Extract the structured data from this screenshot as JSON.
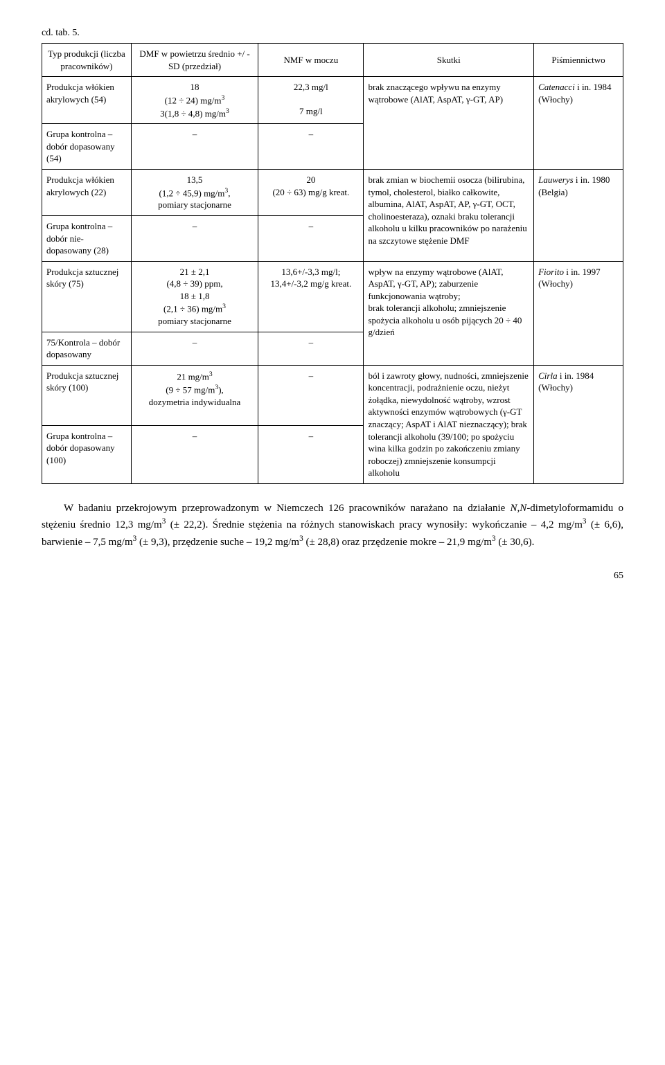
{
  "caption": "cd. tab. 5.",
  "headers": {
    "c1": "Typ produkcji (liczba pracowników)",
    "c2": "DMF w powietrzu średnio +/ -SD (przedział)",
    "c3": "NMF w moczu",
    "c4": "Skutki",
    "c5": "Piśmiennictwo"
  },
  "rows": [
    {
      "c1": "Produkcja włókien akrylowych (54)",
      "c2": "18\n(12 ÷ 24) mg/m³\n3(1,8 ÷ 4,8) mg/m³",
      "c3": "22,3 mg/l\n\n7 mg/l",
      "c4": "brak znaczącego wpływu na enzymy wątrobowe (AlAT, AspAT, γ-GT, AP)",
      "c5_name": "Catenacci",
      "c5_rest": " i in. 1984 (Włochy)"
    },
    {
      "c1": "Grupa kontrolna – dobór dopasowany (54)",
      "c2": "–",
      "c3": "–",
      "c4": "",
      "c5": ""
    },
    {
      "c1": "Produkcja włókien akrylowych (22)",
      "c2": "13,5\n(1,2 ÷ 45,9) mg/m³,\npomiary stacjonarne",
      "c3": "20\n(20 ÷ 63) mg/g kreat.",
      "c4": "brak zmian w biochemii osocza (bilirubina, tymol, cholesterol, białko całkowite, albumina, AlAT, AspAT, AP, γ-GT, OCT, cholinoesteraza), oznaki braku tolerancji alkoholu u kilku pracowników po narażeniu na szczytowe stężenie DMF",
      "c5_name": "Lauwerys",
      "c5_rest": " i in. 1980 (Belgia)"
    },
    {
      "c1": "Grupa kontrolna – dobór nie-dopasowany (28)",
      "c2": "–",
      "c3": "–",
      "c4": "",
      "c5": ""
    },
    {
      "c1": "Produkcja sztucznej skóry (75)",
      "c2": "21 ± 2,1\n(4,8 ÷ 39) ppm,\n18 ± 1,8\n(2,1 ÷ 36) mg/m³\npomiary stacjonarne",
      "c3": "13,6+/-3,3 mg/l;\n13,4+/-3,2 mg/g kreat.",
      "c4": "wpływ na enzymy wątrobowe (AlAT, AspAT, γ-GT, AP); zaburzenie funkcjonowania wątroby;\nbrak tolerancji alkoholu; zmniejszenie spożycia alkoholu u osób pijących 20 ÷ 40 g/dzień",
      "c5_name": "Fiorito",
      "c5_rest": " i in. 1997 (Włochy)"
    },
    {
      "c1": "75/Kontrola – dobór dopasowany",
      "c2": "–",
      "c3": "–",
      "c4": "",
      "c5": ""
    },
    {
      "c1": "Produkcja sztucznej skóry (100)",
      "c2": "21 mg/m³\n(9 ÷ 57 mg/m³),\ndozymetria indywidualna",
      "c3": "–",
      "c4": "ból i zawroty głowy, nudności, zmniejszenie koncentracji, podrażnienie oczu, nieżyt żołądka, niewydolność wątroby, wzrost aktywności enzymów wątrobowych (γ-GT znaczący; AspAT i AlAT nieznaczący); brak tolerancji alkoholu (39/100; po spożyciu wina kilka godzin po zakończeniu zmiany roboczej) zmniejszenie konsumpcji alkoholu",
      "c5_name": "Cirla",
      "c5_rest": " i in. 1984 (Włochy)"
    },
    {
      "c1": "Grupa kontrolna – dobór dopasowany (100)",
      "c2": "–",
      "c3": "–",
      "c4": "",
      "c5": ""
    }
  ],
  "paragraph": "W badaniu przekrojowym przeprowadzonym w Niemczech 126 pracowników narażano na działanie N,N-dimetyloformamidu o stężeniu średnio 12,3 mg/m³ (± 22,2). Średnie stężenia na różnych stanowiskach pracy wynosiły: wykończanie – 4,2 mg/m³ (± 6,6), barwienie – 7,5 mg/m³ (± 9,3), przędzenie suche – 19,2 mg/m³ (± 28,8) oraz przędzenie mokre – 21,9 mg/m³ (± 30,6).",
  "pageNumber": "65"
}
